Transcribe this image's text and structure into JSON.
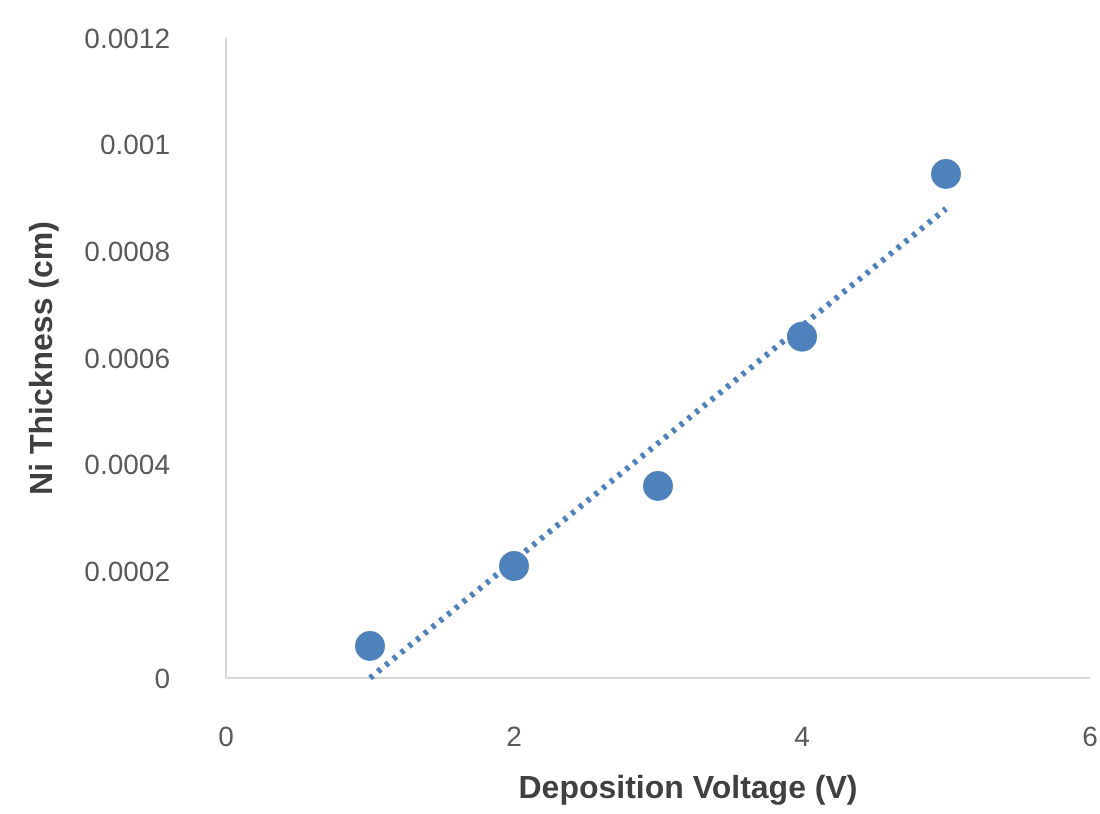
{
  "chart_data": {
    "type": "scatter",
    "xlabel": "Deposition Voltage (V)",
    "ylabel": "Ni Thickness (cm)",
    "xlim": [
      0,
      6
    ],
    "xticks": [
      0,
      2,
      4,
      6
    ],
    "ylim": [
      0,
      0.0012
    ],
    "yticks": [
      0,
      0.0002,
      0.0004,
      0.0006,
      0.0008,
      0.001,
      0.0012
    ],
    "grid": false,
    "marker": "circle",
    "series": [
      {
        "color": "#4f81bd",
        "x": [
          1,
          2,
          3,
          4,
          5
        ],
        "values": [
          6e-05,
          0.00021,
          0.00036,
          0.00064,
          0.000945
        ]
      },
      {
        "type": "line",
        "color": "#4f81bd",
        "line_style": "dotted",
        "marker": "none",
        "x": [
          1,
          5
        ],
        "values": [
          0,
          0.00088
        ]
      }
    ]
  }
}
